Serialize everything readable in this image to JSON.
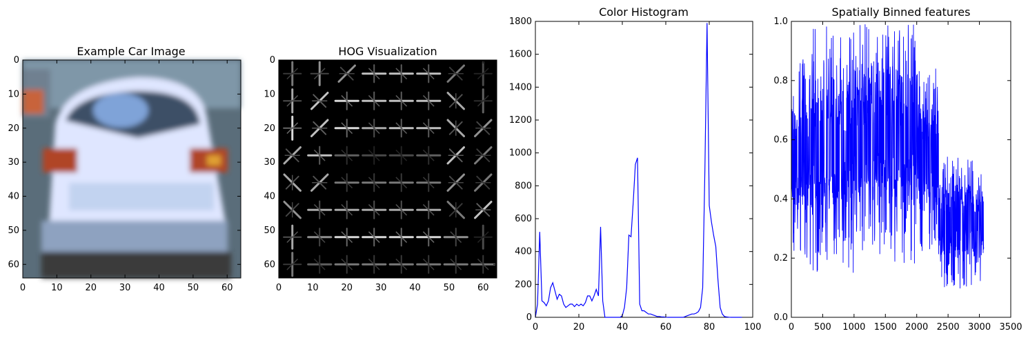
{
  "figure": {
    "panels": [
      {
        "id": "car",
        "title": "Example Car Image",
        "type": "image",
        "xticks": [
          0,
          10,
          20,
          30,
          40,
          50,
          60
        ],
        "yticks": [
          0,
          10,
          20,
          30,
          40,
          50,
          60
        ],
        "xlim": [
          0,
          64
        ],
        "ylim": [
          0,
          64
        ]
      },
      {
        "id": "hog",
        "title": "HOG Visualization",
        "type": "image",
        "xticks": [
          0,
          10,
          20,
          30,
          40,
          50,
          60
        ],
        "yticks": [
          0,
          10,
          20,
          30,
          40,
          50,
          60
        ],
        "xlim": [
          0,
          64
        ],
        "ylim": [
          0,
          64
        ]
      },
      {
        "id": "hist",
        "title": "Color Histogram",
        "type": "line",
        "xticks": [
          0,
          20,
          40,
          60,
          80,
          100
        ],
        "yticks": [
          0,
          200,
          400,
          600,
          800,
          1000,
          1200,
          1400,
          1600,
          1800
        ],
        "xlim": [
          0,
          100
        ],
        "ylim": [
          0,
          1800
        ]
      },
      {
        "id": "spatial",
        "title": "Spatially Binned features",
        "type": "line",
        "xticks": [
          0,
          500,
          1000,
          1500,
          2000,
          2500,
          3000,
          3500
        ],
        "yticks": [
          "0.0",
          "0.2",
          "0.4",
          "0.6",
          "0.8",
          "1.0"
        ],
        "xlim": [
          0,
          3500
        ],
        "ylim": [
          0,
          1
        ]
      }
    ]
  },
  "chart_data": [
    {
      "type": "image",
      "title": "Example Car Image",
      "xlim": [
        0,
        64
      ],
      "ylim": [
        0,
        64
      ]
    },
    {
      "type": "heatmap",
      "title": "HOG Visualization",
      "grid": 8,
      "dominant_orientation": [
        [
          "v",
          "v",
          "d1",
          "h",
          "h",
          "h",
          "d1",
          "v"
        ],
        [
          "v",
          "d1",
          "h",
          "h",
          "h",
          "h",
          "d2",
          "v"
        ],
        [
          "v",
          "d1",
          "h",
          "h",
          "h",
          "h",
          "d2",
          "d1"
        ],
        [
          "d1",
          "h",
          "h",
          "h",
          "h",
          "h",
          "d1",
          "d1"
        ],
        [
          "d2",
          "d1",
          "h",
          "h",
          "h",
          "h",
          "d1",
          "d1"
        ],
        [
          "d2",
          "h",
          "h",
          "h",
          "h",
          "h",
          "d2",
          "d1"
        ],
        [
          "v",
          "h",
          "h",
          "h",
          "h",
          "h",
          "h",
          "v"
        ],
        [
          "v",
          "h",
          "h",
          "h",
          "h",
          "h",
          "h",
          "h"
        ]
      ],
      "strength": [
        [
          0.5,
          0.6,
          0.6,
          0.8,
          0.8,
          0.8,
          0.5,
          0.3
        ],
        [
          0.7,
          0.8,
          0.9,
          0.8,
          0.8,
          0.8,
          0.7,
          0.4
        ],
        [
          0.9,
          0.8,
          0.9,
          0.7,
          0.8,
          0.8,
          0.7,
          0.6
        ],
        [
          0.7,
          0.8,
          0.4,
          0.3,
          0.3,
          0.4,
          0.8,
          0.5
        ],
        [
          0.7,
          0.7,
          0.5,
          0.5,
          0.5,
          0.5,
          0.6,
          0.5
        ],
        [
          0.6,
          0.7,
          0.7,
          0.7,
          0.7,
          0.7,
          0.5,
          0.8
        ],
        [
          0.7,
          0.6,
          0.9,
          0.9,
          0.9,
          0.9,
          0.6,
          0.3
        ],
        [
          0.5,
          0.4,
          0.5,
          0.5,
          0.5,
          0.5,
          0.5,
          0.5
        ]
      ],
      "xlim": [
        0,
        64
      ],
      "ylim": [
        0,
        64
      ]
    },
    {
      "type": "line",
      "title": "Color Histogram",
      "color": "#0000ff",
      "x": [
        0,
        1,
        2,
        3,
        4,
        5,
        6,
        7,
        8,
        9,
        10,
        11,
        12,
        13,
        14,
        15,
        16,
        17,
        18,
        19,
        20,
        21,
        22,
        23,
        24,
        25,
        26,
        27,
        28,
        29,
        30,
        31,
        32,
        33,
        34,
        35,
        36,
        37,
        38,
        39,
        40,
        41,
        42,
        43,
        44,
        45,
        46,
        47,
        48,
        49,
        50,
        51,
        52,
        53,
        54,
        55,
        56,
        57,
        58,
        59,
        60,
        61,
        62,
        63,
        64,
        65,
        66,
        67,
        68,
        69,
        70,
        71,
        72,
        73,
        74,
        75,
        76,
        77,
        78,
        79,
        80,
        81,
        82,
        83,
        84,
        85,
        86,
        87,
        88,
        89,
        90,
        91,
        92,
        93,
        94,
        95
      ],
      "y": [
        0,
        80,
        520,
        100,
        90,
        70,
        100,
        180,
        210,
        160,
        110,
        140,
        130,
        80,
        60,
        70,
        80,
        80,
        65,
        80,
        70,
        80,
        70,
        90,
        130,
        130,
        100,
        130,
        170,
        130,
        550,
        100,
        0,
        0,
        0,
        0,
        0,
        0,
        0,
        0,
        10,
        60,
        180,
        500,
        490,
        700,
        930,
        970,
        80,
        40,
        40,
        30,
        20,
        20,
        15,
        10,
        5,
        5,
        3,
        2,
        1,
        0,
        0,
        0,
        0,
        0,
        0,
        0,
        0,
        5,
        10,
        15,
        20,
        20,
        25,
        35,
        60,
        180,
        900,
        1790,
        680,
        580,
        500,
        430,
        230,
        60,
        20,
        5,
        2,
        1,
        0,
        0,
        0,
        0,
        0,
        0
      ],
      "xlim": [
        0,
        100
      ],
      "ylim": [
        0,
        1800
      ]
    },
    {
      "type": "line",
      "title": "Spatially Binned features",
      "color": "#0000ff",
      "x_range": [
        0,
        3072
      ],
      "envelope_segments": [
        {
          "x0": 0,
          "x1": 300,
          "lo": 0.2,
          "hi": 0.88
        },
        {
          "x0": 300,
          "x1": 1000,
          "lo": 0.15,
          "hi": 1.0
        },
        {
          "x0": 1000,
          "x1": 1600,
          "lo": 0.2,
          "hi": 1.0
        },
        {
          "x0": 1600,
          "x1": 2000,
          "lo": 0.18,
          "hi": 1.0
        },
        {
          "x0": 2000,
          "x1": 2350,
          "lo": 0.22,
          "hi": 0.85
        },
        {
          "x0": 2350,
          "x1": 2400,
          "lo": 0.1,
          "hi": 0.54
        },
        {
          "x0": 2400,
          "x1": 3072,
          "lo": 0.09,
          "hi": 0.55
        }
      ],
      "xlim": [
        0,
        3500
      ],
      "ylim": [
        0,
        1
      ]
    }
  ]
}
